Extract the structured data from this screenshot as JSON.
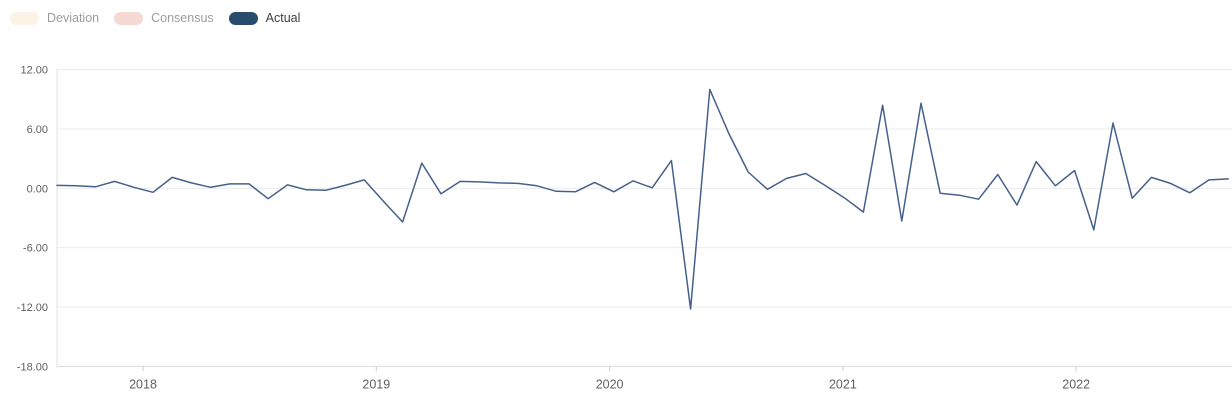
{
  "legend": {
    "items": [
      {
        "id": "deviation",
        "label": "Deviation",
        "swatch_color": "#fcf2e6",
        "text_color": "#9d9d9d",
        "active": false
      },
      {
        "id": "consensus",
        "label": "Consensus",
        "swatch_color": "#f6d9d2",
        "text_color": "#9d9d9d",
        "active": false
      },
      {
        "id": "actual",
        "label": "Actual",
        "swatch_color": "#294b6d",
        "text_color": "#3f3f3f",
        "active": true
      }
    ]
  },
  "chart_data": {
    "type": "line",
    "grid": true,
    "legend_position": "top-left",
    "ylim": [
      -18,
      12
    ],
    "y_tick_labels": [
      "12.00",
      "6.00",
      "0.00",
      "-6.00",
      "-12.00",
      "-18.00"
    ],
    "y_tick_values": [
      12,
      6,
      0,
      -6,
      -12,
      -18
    ],
    "x_ticks": [
      "2018",
      "2019",
      "2020",
      "2021",
      "2022"
    ],
    "series": [
      {
        "name": "Actual",
        "color": "#45618b",
        "periods": [
          "2017-08",
          "2017-09",
          "2017-10",
          "2017-11",
          "2017-12",
          "2018-01",
          "2018-02",
          "2018-03",
          "2018-04",
          "2018-05",
          "2018-06",
          "2018-07",
          "2018-08",
          "2018-09",
          "2018-10",
          "2018-11",
          "2018-12",
          "2019-01",
          "2019-02",
          "2019-03",
          "2019-04",
          "2019-05",
          "2019-06",
          "2019-07",
          "2019-08",
          "2019-09",
          "2019-10",
          "2019-11",
          "2019-12",
          "2020-01",
          "2020-02",
          "2020-03",
          "2020-04",
          "2020-05",
          "2020-06",
          "2020-07",
          "2020-08",
          "2020-09",
          "2020-10",
          "2020-11",
          "2020-12",
          "2021-01",
          "2021-02",
          "2021-03",
          "2021-04",
          "2021-05",
          "2021-06",
          "2021-07",
          "2021-08",
          "2021-09",
          "2021-10",
          "2021-11",
          "2021-12",
          "2022-01",
          "2022-02",
          "2022-03",
          "2022-04",
          "2022-05",
          "2022-06",
          "2022-07",
          "2022-08",
          "2022-09"
        ],
        "values": [
          0.3,
          0.25,
          0.15,
          0.7,
          0.1,
          -0.4,
          1.1,
          0.55,
          0.1,
          0.45,
          0.45,
          -1.05,
          0.35,
          -0.15,
          -0.2,
          0.3,
          0.85,
          -1.3,
          -3.4,
          2.55,
          -0.55,
          0.7,
          0.65,
          0.55,
          0.5,
          0.25,
          -0.3,
          -0.35,
          0.6,
          -0.35,
          0.75,
          0.05,
          2.8,
          -12.2,
          10.0,
          5.5,
          1.65,
          -0.1,
          1.0,
          1.5,
          0.3,
          -0.95,
          -2.4,
          8.4,
          -3.3,
          8.6,
          -0.5,
          -0.7,
          -1.1,
          1.4,
          -1.7,
          2.7,
          0.25,
          1.8,
          -4.2,
          6.6,
          -1.0,
          1.1,
          0.5,
          -0.45,
          0.85,
          0.95
        ]
      }
    ],
    "colors": {
      "gridline": "#ececec",
      "baseline": "#d9d9d9",
      "y_axis_line": "#e2e2e2",
      "tick": "#cfcfcf",
      "axis_text": "#606060"
    }
  }
}
